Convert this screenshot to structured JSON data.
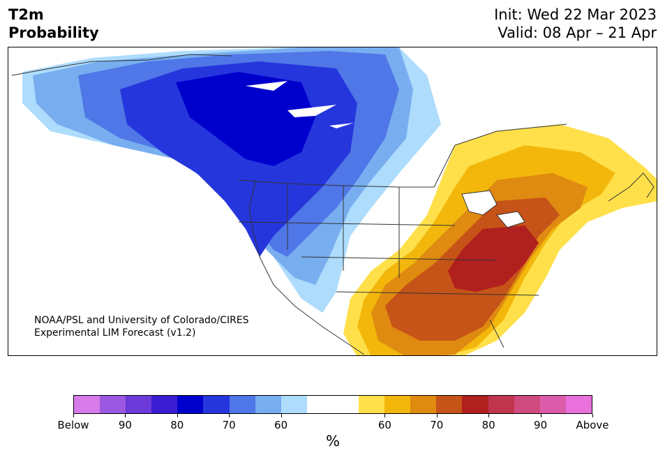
{
  "header": {
    "title_line1": "T2m",
    "title_line2": "Probability",
    "init_text": "Init: Wed 22 Mar 2023",
    "valid_text": "Valid: 08 Apr – 21 Apr"
  },
  "map": {
    "credit_line1": "NOAA/PSL and University of Colorado/CIRES",
    "credit_line2": "Experimental LIM Forecast (v1.2)"
  },
  "colorbar": {
    "unit": "%",
    "colors": [
      "#d67be9",
      "#9b58e0",
      "#6b3ad8",
      "#3a1dd3",
      "#0000cd",
      "#2536dd",
      "#4f77e7",
      "#78aef0",
      "#aedcfc",
      "#ffffff",
      "#ffffff",
      "#ffe04a",
      "#f3b70c",
      "#df8a10",
      "#c65317",
      "#b0201e",
      "#c2354f",
      "#d04b7d",
      "#db5daa",
      "#e871db"
    ],
    "labels": [
      "Below",
      "90",
      "80",
      "70",
      "60",
      "60",
      "70",
      "80",
      "90",
      "Above"
    ]
  }
}
